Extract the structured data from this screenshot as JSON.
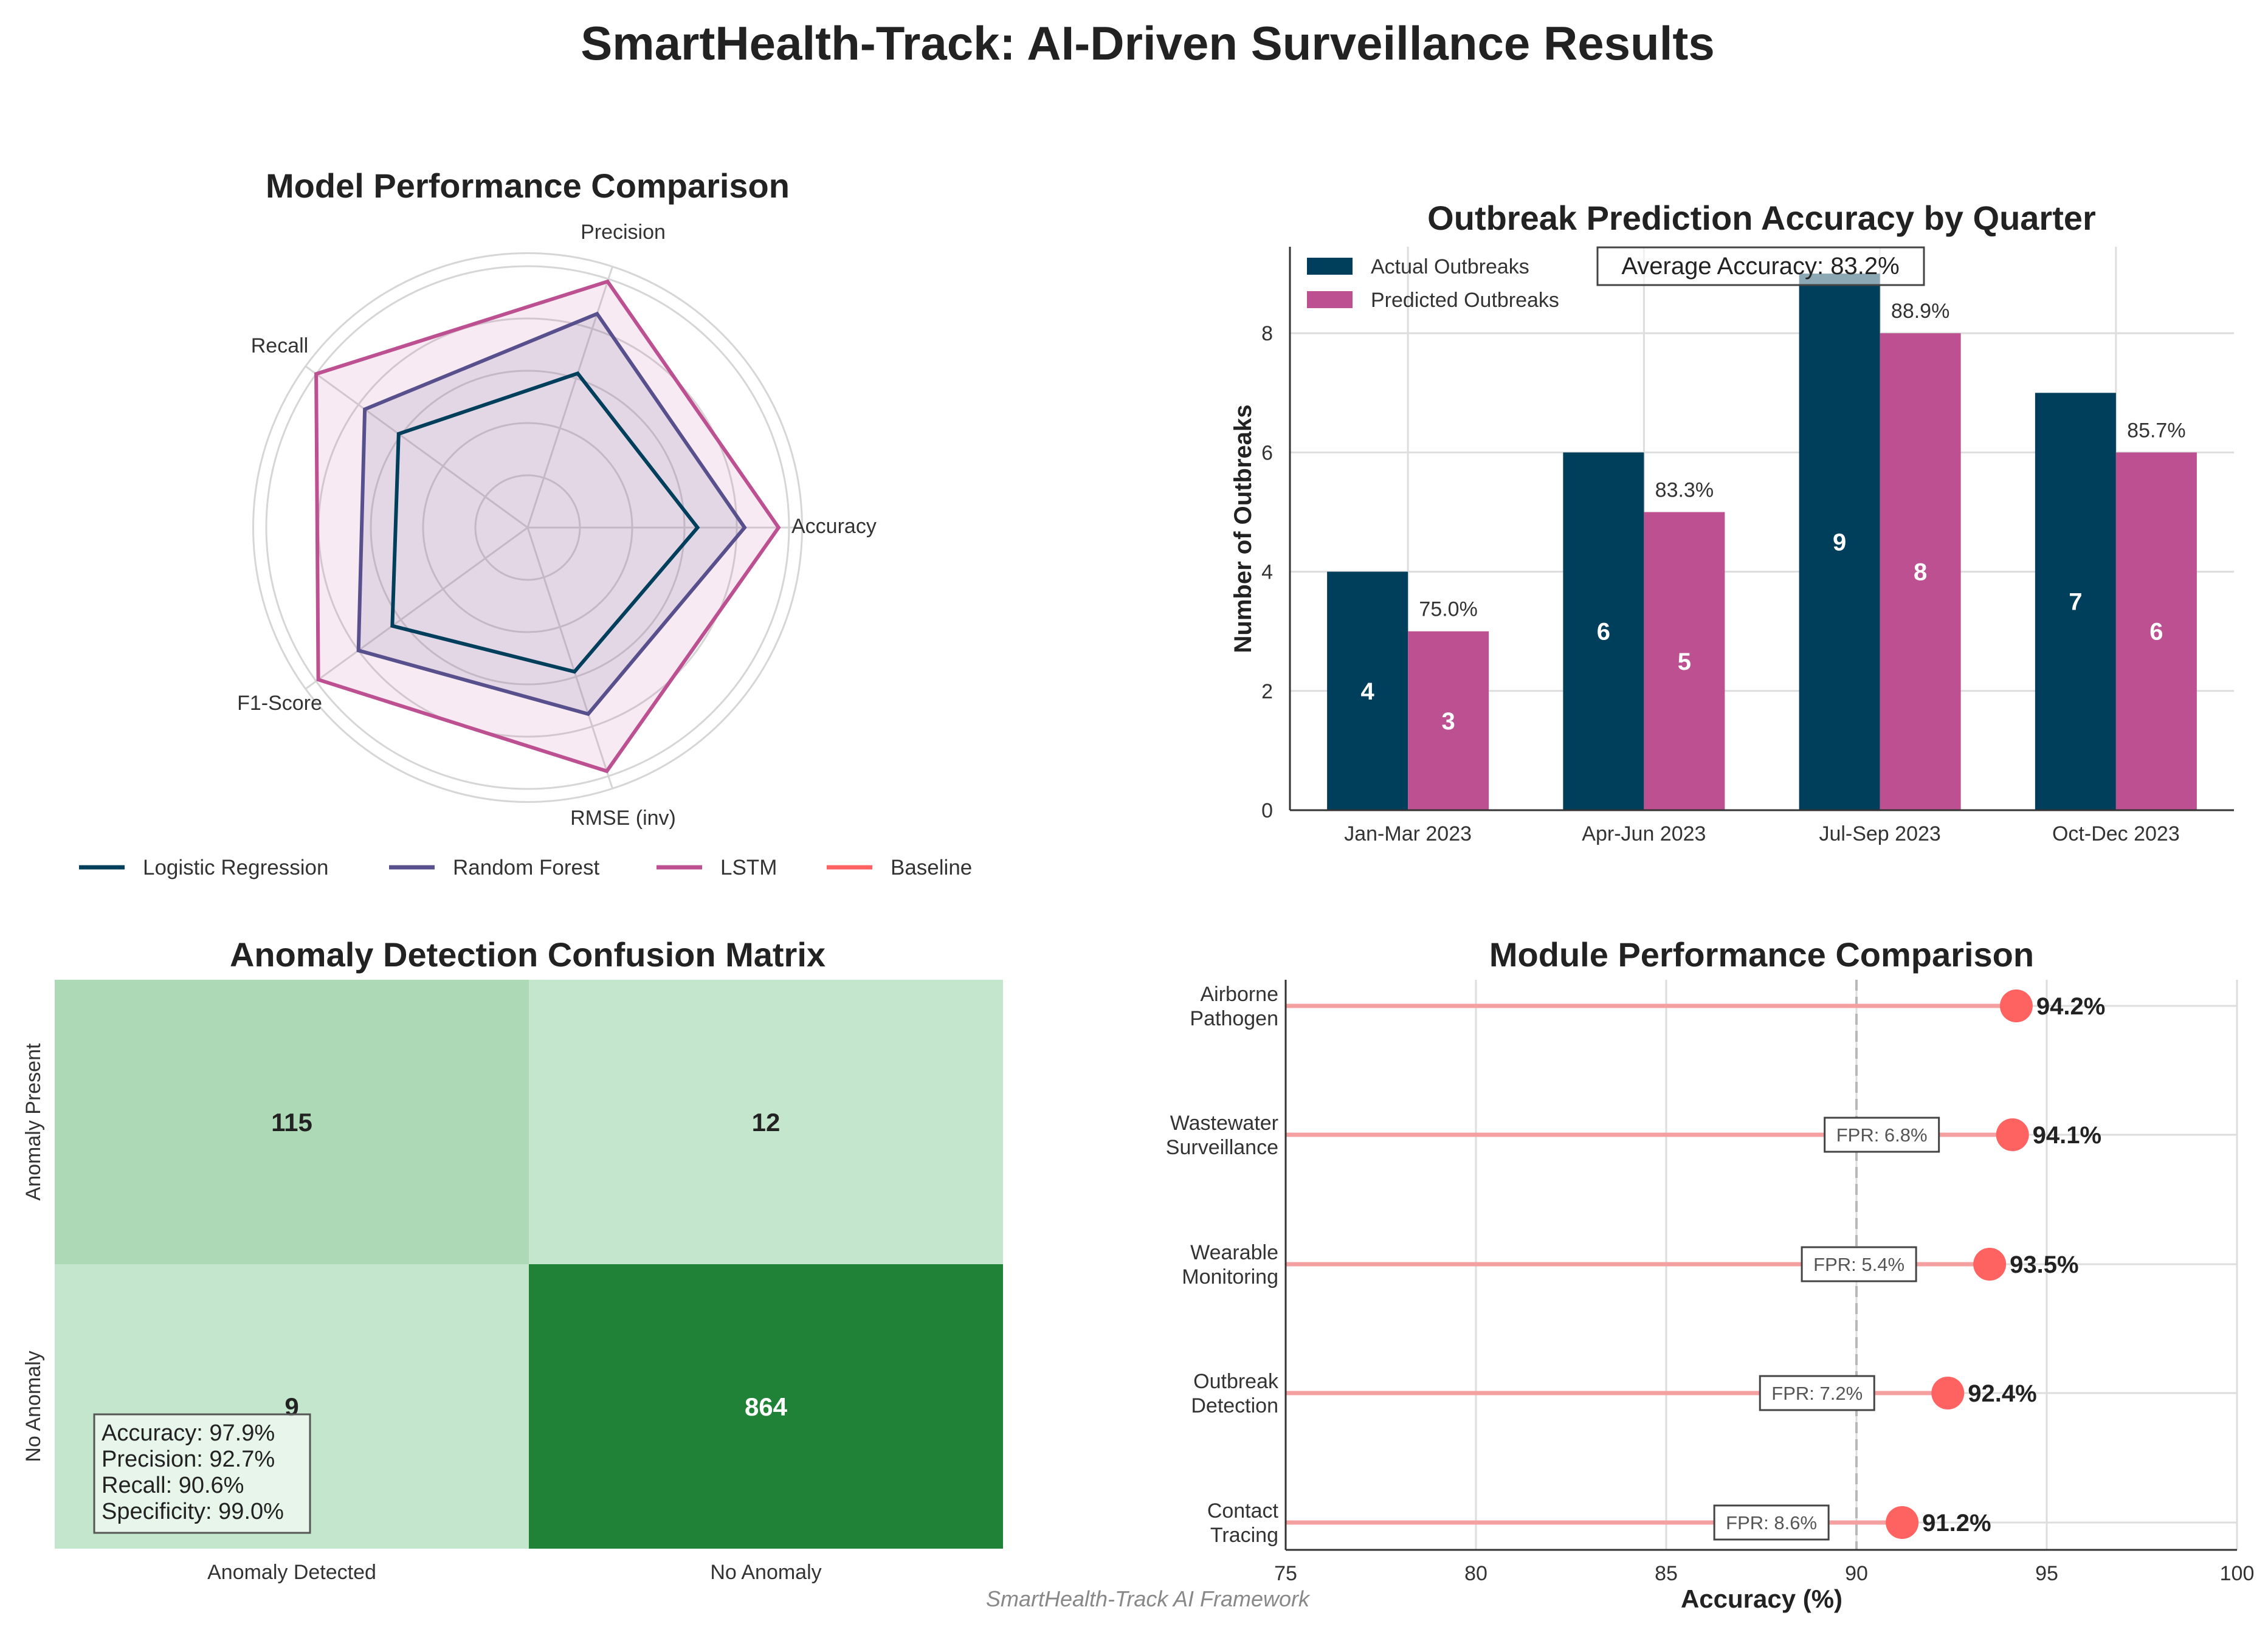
{
  "page": {
    "title": "SmartHealth-Track: AI-Driven Surveillance Results",
    "footer": "SmartHealth-Track AI Framework"
  },
  "colors": {
    "navy": "#003f5c",
    "purple": "#58508d",
    "magenta": "#bc5090",
    "coral": "#ff6361",
    "lollipop_line": "#f4a0a0",
    "cm_low": "#c4e6cc",
    "cm_mid": "#aed9b6",
    "cm_high": "#208237"
  },
  "chart_data": [
    {
      "id": "radar",
      "type": "radar",
      "title": "Model Performance Comparison",
      "axes": [
        "Accuracy",
        "Precision",
        "Recall",
        "F1-Score",
        "RMSE (inv)"
      ],
      "rlim": [
        0,
        1
      ],
      "series": [
        {
          "name": "Logistic Regression",
          "color": "#003f5c",
          "fill": false,
          "values": [
            0.65,
            0.62,
            0.61,
            0.64,
            0.58
          ]
        },
        {
          "name": "Random Forest",
          "color": "#58508d",
          "fill": true,
          "values": [
            0.83,
            0.86,
            0.77,
            0.8,
            0.75
          ]
        },
        {
          "name": "LSTM",
          "color": "#bc5090",
          "fill": true,
          "values": [
            0.96,
            0.99,
            1.0,
            0.99,
            0.98
          ]
        },
        {
          "name": "Baseline",
          "color": "#ff6361",
          "fill": false,
          "values": []
        }
      ]
    },
    {
      "id": "bars",
      "type": "bar",
      "title": "Outbreak Prediction Accuracy by Quarter",
      "categories": [
        "Jan-Mar 2023",
        "Apr-Jun 2023",
        "Jul-Sep 2023",
        "Oct-Dec 2023"
      ],
      "series": [
        {
          "name": "Actual Outbreaks",
          "color": "#003f5c",
          "values": [
            4,
            6,
            9,
            7
          ]
        },
        {
          "name": "Predicted Outbreaks",
          "color": "#bc5090",
          "values": [
            3,
            5,
            8,
            6
          ]
        }
      ],
      "accuracy_labels": [
        "75.0%",
        "83.3%",
        "88.9%",
        "85.7%"
      ],
      "annotation": "Average Accuracy: 83.2%",
      "ylabel": "Number of Outbreaks",
      "xlabel": "",
      "ylim": [
        0,
        9.45
      ],
      "yticks": [
        0,
        2,
        4,
        6,
        8
      ]
    },
    {
      "id": "matrix",
      "type": "heatmap",
      "title": "Anomaly Detection Confusion Matrix",
      "row_labels": [
        "Anomaly Present",
        "No Anomaly"
      ],
      "col_labels": [
        "Anomaly Detected",
        "No Anomaly"
      ],
      "values": [
        [
          115,
          12
        ],
        [
          9,
          864
        ]
      ],
      "cell_colors": [
        [
          "#aed9b6",
          "#c4e6cc"
        ],
        [
          "#c4e6cc",
          "#208237"
        ]
      ],
      "stats": [
        "Accuracy: 97.9%",
        "Precision: 92.7%",
        "Recall: 90.6%",
        "Specificity: 99.0%"
      ]
    },
    {
      "id": "lollipop",
      "type": "lollipop",
      "title": "Module Performance Comparison",
      "modules": [
        {
          "name": [
            "Airborne",
            "Pathogen"
          ],
          "accuracy": 94.2,
          "label": "94.2%",
          "fpr": ""
        },
        {
          "name": [
            "Wastewater",
            "Surveillance"
          ],
          "accuracy": 94.1,
          "label": "94.1%",
          "fpr": "FPR: 6.8%"
        },
        {
          "name": [
            "Wearable",
            "Monitoring"
          ],
          "accuracy": 93.5,
          "label": "93.5%",
          "fpr": "FPR: 5.4%"
        },
        {
          "name": [
            "Outbreak",
            "Detection"
          ],
          "accuracy": 92.4,
          "label": "92.4%",
          "fpr": "FPR: 7.2%"
        },
        {
          "name": [
            "Contact",
            "Tracing"
          ],
          "accuracy": 91.2,
          "label": "91.2%",
          "fpr": "FPR: 8.6%"
        }
      ],
      "xlabel": "Accuracy (%)",
      "xlim": [
        75,
        100
      ],
      "xticks": [
        75,
        80,
        85,
        90,
        95,
        100
      ],
      "reference_x": 90
    }
  ]
}
